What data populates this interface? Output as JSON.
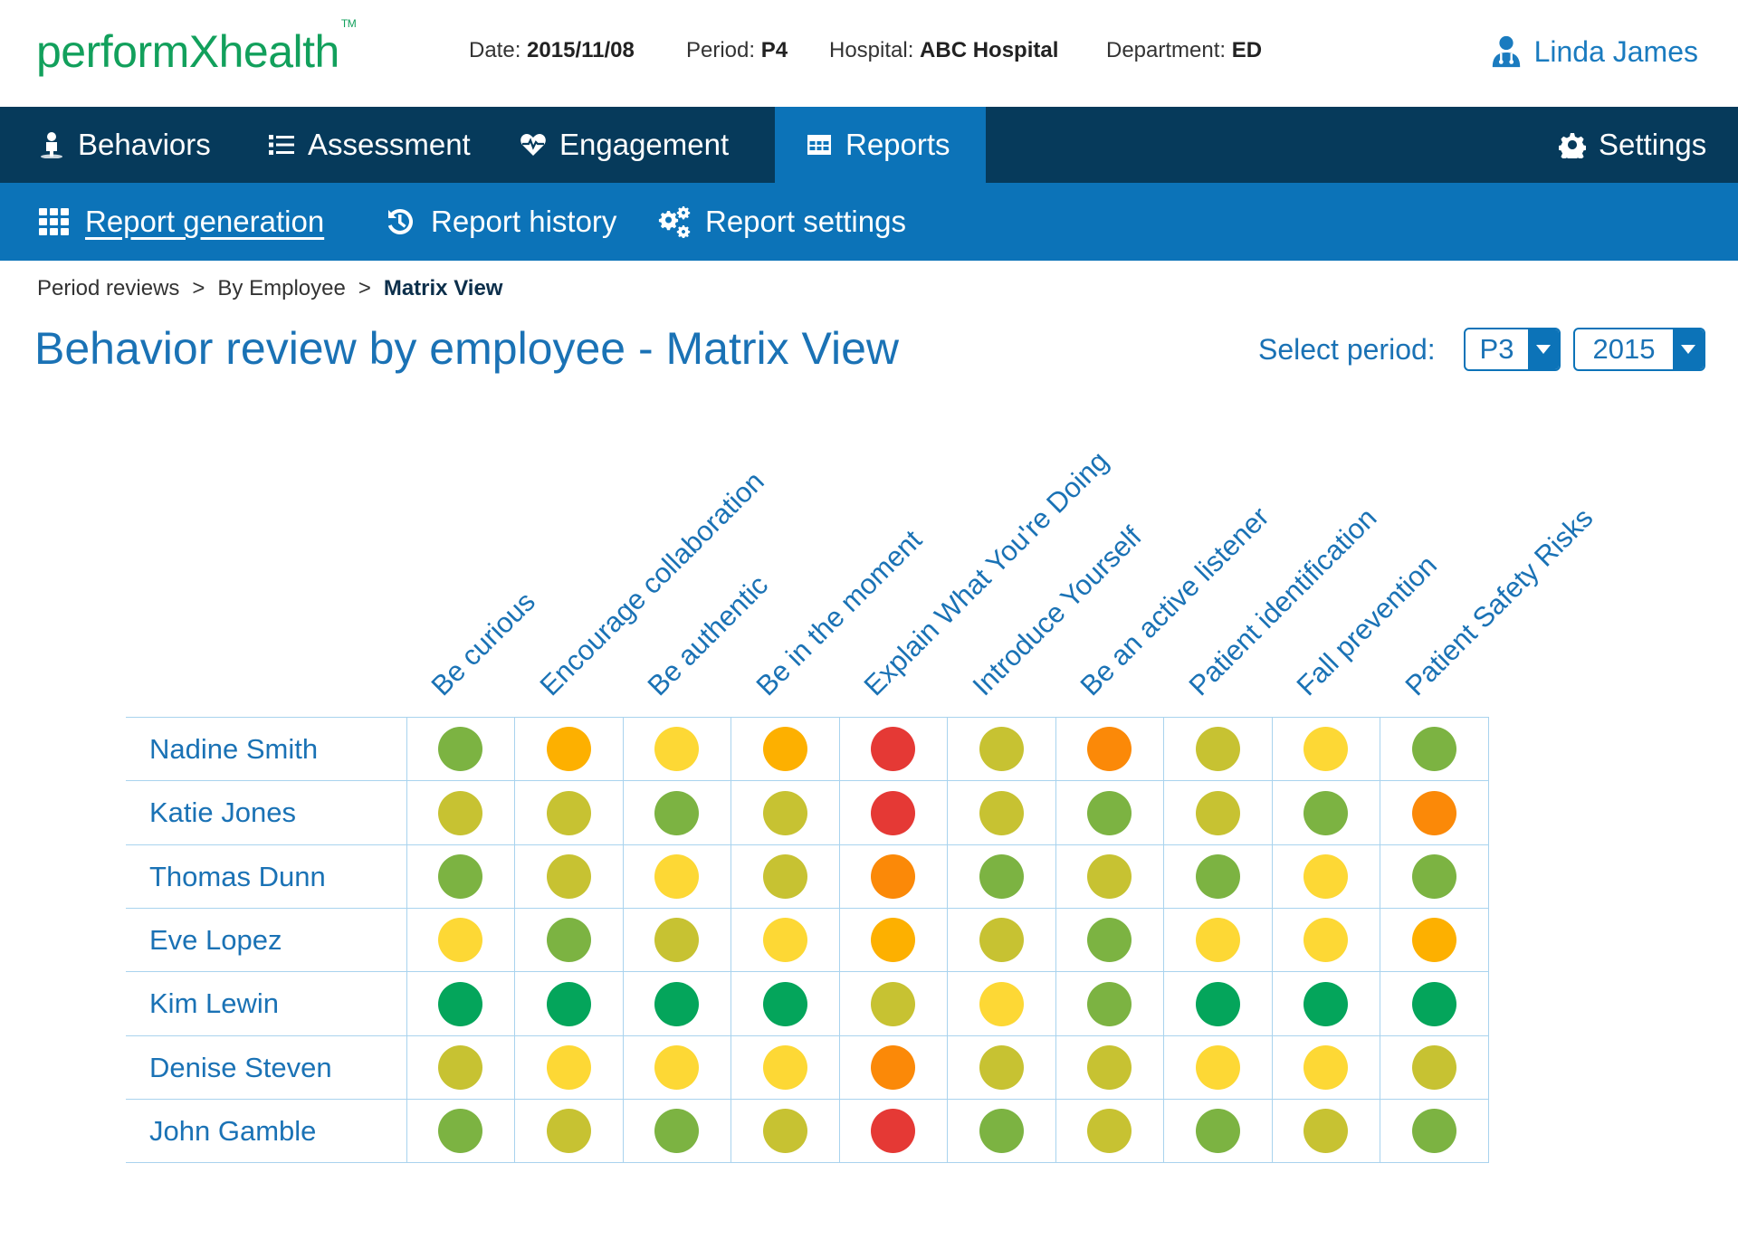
{
  "header": {
    "logo_text": "performXhealth",
    "logo_tm": "TM",
    "date_label": "Date:",
    "date_value": "2015/11/08",
    "period_label": "Period:",
    "period_value": "P4",
    "hospital_label": "Hospital:",
    "hospital_value": "ABC Hospital",
    "department_label": "Department:",
    "department_value": "ED",
    "user_name": "Linda James"
  },
  "main_nav": {
    "behaviors": "Behaviors",
    "assessment": "Assessment",
    "engagement": "Engagement",
    "reports": "Reports",
    "settings": "Settings",
    "active": "Reports"
  },
  "sub_nav": {
    "report_generation": "Report generation",
    "report_history": "Report history",
    "report_settings": "Report settings"
  },
  "breadcrumb": {
    "items": [
      "Period reviews",
      "By Employee",
      "Matrix View"
    ],
    "separator": ">"
  },
  "page": {
    "title": "Behavior review by employee - Matrix View",
    "select_period_label": "Select period:",
    "period_select_value": "P3",
    "year_select_value": "2015"
  },
  "colors": {
    "dark_green": "#04a55b",
    "green": "#7cb342",
    "olive": "#c7c232",
    "yellow": "#fdd835",
    "amber": "#fdb000",
    "orange": "#fb8908",
    "red": "#e53935",
    "brand_green": "#12a05c",
    "nav_dark": "#063a5b",
    "nav_blue": "#0c73b8"
  },
  "matrix": {
    "columns": [
      "Be curious",
      "Encourage collaboration",
      "Be authentic",
      "Be in the moment",
      "Explain What You're Doing",
      "Introduce Yourself",
      "Be an active listener",
      "Patient identification",
      "Fall prevention",
      "Patient Safety Risks"
    ],
    "rows": [
      {
        "name": "Nadine Smith",
        "ratings": [
          "green",
          "amber",
          "yellow",
          "amber",
          "red",
          "olive",
          "orange",
          "olive",
          "yellow",
          "green"
        ]
      },
      {
        "name": "Katie Jones",
        "ratings": [
          "olive",
          "olive",
          "green",
          "olive",
          "red",
          "olive",
          "green",
          "olive",
          "green",
          "orange"
        ]
      },
      {
        "name": "Thomas Dunn",
        "ratings": [
          "green",
          "olive",
          "yellow",
          "olive",
          "orange",
          "green",
          "olive",
          "green",
          "yellow",
          "green"
        ]
      },
      {
        "name": "Eve Lopez",
        "ratings": [
          "yellow",
          "green",
          "olive",
          "yellow",
          "amber",
          "olive",
          "green",
          "yellow",
          "yellow",
          "amber"
        ]
      },
      {
        "name": "Kim Lewin",
        "ratings": [
          "dark_green",
          "dark_green",
          "dark_green",
          "dark_green",
          "olive",
          "yellow",
          "green",
          "dark_green",
          "dark_green",
          "dark_green"
        ]
      },
      {
        "name": "Denise Steven",
        "ratings": [
          "olive",
          "yellow",
          "yellow",
          "yellow",
          "orange",
          "olive",
          "olive",
          "yellow",
          "yellow",
          "olive"
        ]
      },
      {
        "name": "John Gamble",
        "ratings": [
          "green",
          "olive",
          "green",
          "olive",
          "red",
          "green",
          "olive",
          "green",
          "olive",
          "green"
        ]
      }
    ]
  }
}
